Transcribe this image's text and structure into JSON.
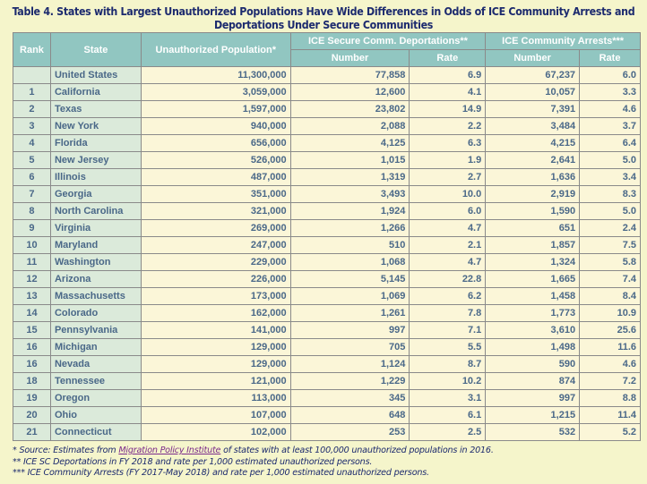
{
  "title_line1": "Table 4. States with Largest Unauthorized Populations Have Wide Differences in Odds of ICE Community Arrests and",
  "title_line2": "Deportations Under Secure Communities",
  "headers": {
    "rank": "Rank",
    "state": "State",
    "population": "Unauthorized Population*",
    "deportations": "ICE Secure Comm. Deportations**",
    "arrests": "ICE Community Arrests***",
    "number": "Number",
    "rate": "Rate"
  },
  "rows": [
    {
      "rank": "",
      "state": "United States",
      "pop": "11,300,000",
      "dep_num": "77,858",
      "dep_rate": "6.9",
      "arr_num": "67,237",
      "arr_rate": "6.0"
    },
    {
      "rank": "1",
      "state": "California",
      "pop": "3,059,000",
      "dep_num": "12,600",
      "dep_rate": "4.1",
      "arr_num": "10,057",
      "arr_rate": "3.3"
    },
    {
      "rank": "2",
      "state": "Texas",
      "pop": "1,597,000",
      "dep_num": "23,802",
      "dep_rate": "14.9",
      "arr_num": "7,391",
      "arr_rate": "4.6"
    },
    {
      "rank": "3",
      "state": "New York",
      "pop": "940,000",
      "dep_num": "2,088",
      "dep_rate": "2.2",
      "arr_num": "3,484",
      "arr_rate": "3.7"
    },
    {
      "rank": "4",
      "state": "Florida",
      "pop": "656,000",
      "dep_num": "4,125",
      "dep_rate": "6.3",
      "arr_num": "4,215",
      "arr_rate": "6.4"
    },
    {
      "rank": "5",
      "state": "New Jersey",
      "pop": "526,000",
      "dep_num": "1,015",
      "dep_rate": "1.9",
      "arr_num": "2,641",
      "arr_rate": "5.0"
    },
    {
      "rank": "6",
      "state": "Illinois",
      "pop": "487,000",
      "dep_num": "1,319",
      "dep_rate": "2.7",
      "arr_num": "1,636",
      "arr_rate": "3.4"
    },
    {
      "rank": "7",
      "state": "Georgia",
      "pop": "351,000",
      "dep_num": "3,493",
      "dep_rate": "10.0",
      "arr_num": "2,919",
      "arr_rate": "8.3"
    },
    {
      "rank": "8",
      "state": "North Carolina",
      "pop": "321,000",
      "dep_num": "1,924",
      "dep_rate": "6.0",
      "arr_num": "1,590",
      "arr_rate": "5.0"
    },
    {
      "rank": "9",
      "state": "Virginia",
      "pop": "269,000",
      "dep_num": "1,266",
      "dep_rate": "4.7",
      "arr_num": "651",
      "arr_rate": "2.4"
    },
    {
      "rank": "10",
      "state": "Maryland",
      "pop": "247,000",
      "dep_num": "510",
      "dep_rate": "2.1",
      "arr_num": "1,857",
      "arr_rate": "7.5"
    },
    {
      "rank": "11",
      "state": "Washington",
      "pop": "229,000",
      "dep_num": "1,068",
      "dep_rate": "4.7",
      "arr_num": "1,324",
      "arr_rate": "5.8"
    },
    {
      "rank": "12",
      "state": "Arizona",
      "pop": "226,000",
      "dep_num": "5,145",
      "dep_rate": "22.8",
      "arr_num": "1,665",
      "arr_rate": "7.4"
    },
    {
      "rank": "13",
      "state": "Massachusetts",
      "pop": "173,000",
      "dep_num": "1,069",
      "dep_rate": "6.2",
      "arr_num": "1,458",
      "arr_rate": "8.4"
    },
    {
      "rank": "14",
      "state": "Colorado",
      "pop": "162,000",
      "dep_num": "1,261",
      "dep_rate": "7.8",
      "arr_num": "1,773",
      "arr_rate": "10.9"
    },
    {
      "rank": "15",
      "state": "Pennsylvania",
      "pop": "141,000",
      "dep_num": "997",
      "dep_rate": "7.1",
      "arr_num": "3,610",
      "arr_rate": "25.6"
    },
    {
      "rank": "16",
      "state": "Michigan",
      "pop": "129,000",
      "dep_num": "705",
      "dep_rate": "5.5",
      "arr_num": "1,498",
      "arr_rate": "11.6"
    },
    {
      "rank": "16",
      "state": "Nevada",
      "pop": "129,000",
      "dep_num": "1,124",
      "dep_rate": "8.7",
      "arr_num": "590",
      "arr_rate": "4.6"
    },
    {
      "rank": "18",
      "state": "Tennessee",
      "pop": "121,000",
      "dep_num": "1,229",
      "dep_rate": "10.2",
      "arr_num": "874",
      "arr_rate": "7.2"
    },
    {
      "rank": "19",
      "state": "Oregon",
      "pop": "113,000",
      "dep_num": "345",
      "dep_rate": "3.1",
      "arr_num": "997",
      "arr_rate": "8.8"
    },
    {
      "rank": "20",
      "state": "Ohio",
      "pop": "107,000",
      "dep_num": "648",
      "dep_rate": "6.1",
      "arr_num": "1,215",
      "arr_rate": "11.4"
    },
    {
      "rank": "21",
      "state": "Connecticut",
      "pop": "102,000",
      "dep_num": "253",
      "dep_rate": "2.5",
      "arr_num": "532",
      "arr_rate": "5.2"
    }
  ],
  "footnotes": {
    "f1_pre": "* Source: Estimates from ",
    "f1_link": "Migration Policy Institute",
    "f1_post": " of states with at least 100,000 unauthorized populations in 2016.",
    "f2": "** ICE SC Deportations in FY 2018 and rate per 1,000 estimated unauthorized persons.",
    "f3": "*** ICE Community Arrests (FY 2017-May 2018) and rate per 1,000 estimated unauthorized persons."
  }
}
